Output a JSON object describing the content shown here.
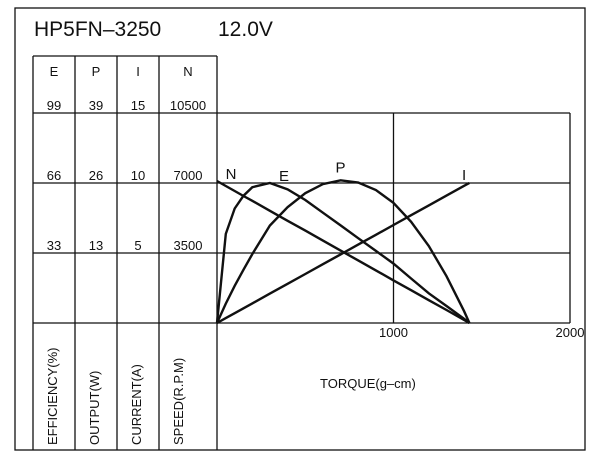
{
  "chart_data": {
    "type": "line",
    "title": "HP5FN–3250",
    "subtitle": "12.0V",
    "x_label": "TORQUE(g–cm)",
    "xlim": [
      0,
      2000
    ],
    "xticks": [
      1000,
      2000
    ],
    "grid": true,
    "color": "#111111",
    "scales": [
      {
        "name": "E",
        "label": "EFFICIENCY(%)",
        "lim": [
          0,
          99
        ],
        "ticks": [
          33,
          66,
          99
        ]
      },
      {
        "name": "P",
        "label": "OUTPUT(W)",
        "lim": [
          0,
          39
        ],
        "ticks": [
          13,
          26,
          39
        ]
      },
      {
        "name": "I",
        "label": "CURRENT(A)",
        "lim": [
          0,
          15
        ],
        "ticks": [
          5,
          10,
          15
        ]
      },
      {
        "name": "N",
        "label": "SPEED(R.P.M)",
        "lim": [
          0,
          10500
        ],
        "ticks": [
          3500,
          7000,
          10500
        ]
      }
    ],
    "x": [
      0,
      50,
      100,
      150,
      200,
      300,
      400,
      500,
      600,
      700,
      800,
      900,
      1000,
      1100,
      1200,
      1300,
      1400,
      1430
    ],
    "series": [
      {
        "name": "N",
        "axis": 3,
        "values": [
          7100,
          6850,
          6600,
          6350,
          6110,
          5610,
          5110,
          4620,
          4120,
          3620,
          3130,
          2630,
          2130,
          1640,
          1140,
          650,
          150,
          0
        ]
      },
      {
        "name": "E",
        "axis": 0,
        "values": [
          0,
          42,
          54,
          60,
          64,
          66,
          63,
          58,
          52,
          46,
          40,
          34,
          28,
          21,
          14,
          8,
          2,
          0
        ]
      },
      {
        "name": "P",
        "axis": 1,
        "values": [
          0,
          3.6,
          6.9,
          9.9,
          12.8,
          18.1,
          21.5,
          24.1,
          25.8,
          26.5,
          26.1,
          24.7,
          22.3,
          18.8,
          14.3,
          8.7,
          2.2,
          0
        ]
      },
      {
        "name": "I",
        "axis": 2,
        "values": [
          0,
          0.35,
          0.7,
          1.05,
          1.4,
          2.1,
          2.8,
          3.5,
          4.2,
          4.9,
          5.6,
          6.3,
          7.0,
          7.7,
          8.4,
          9.1,
          9.8,
          10
        ]
      }
    ]
  }
}
